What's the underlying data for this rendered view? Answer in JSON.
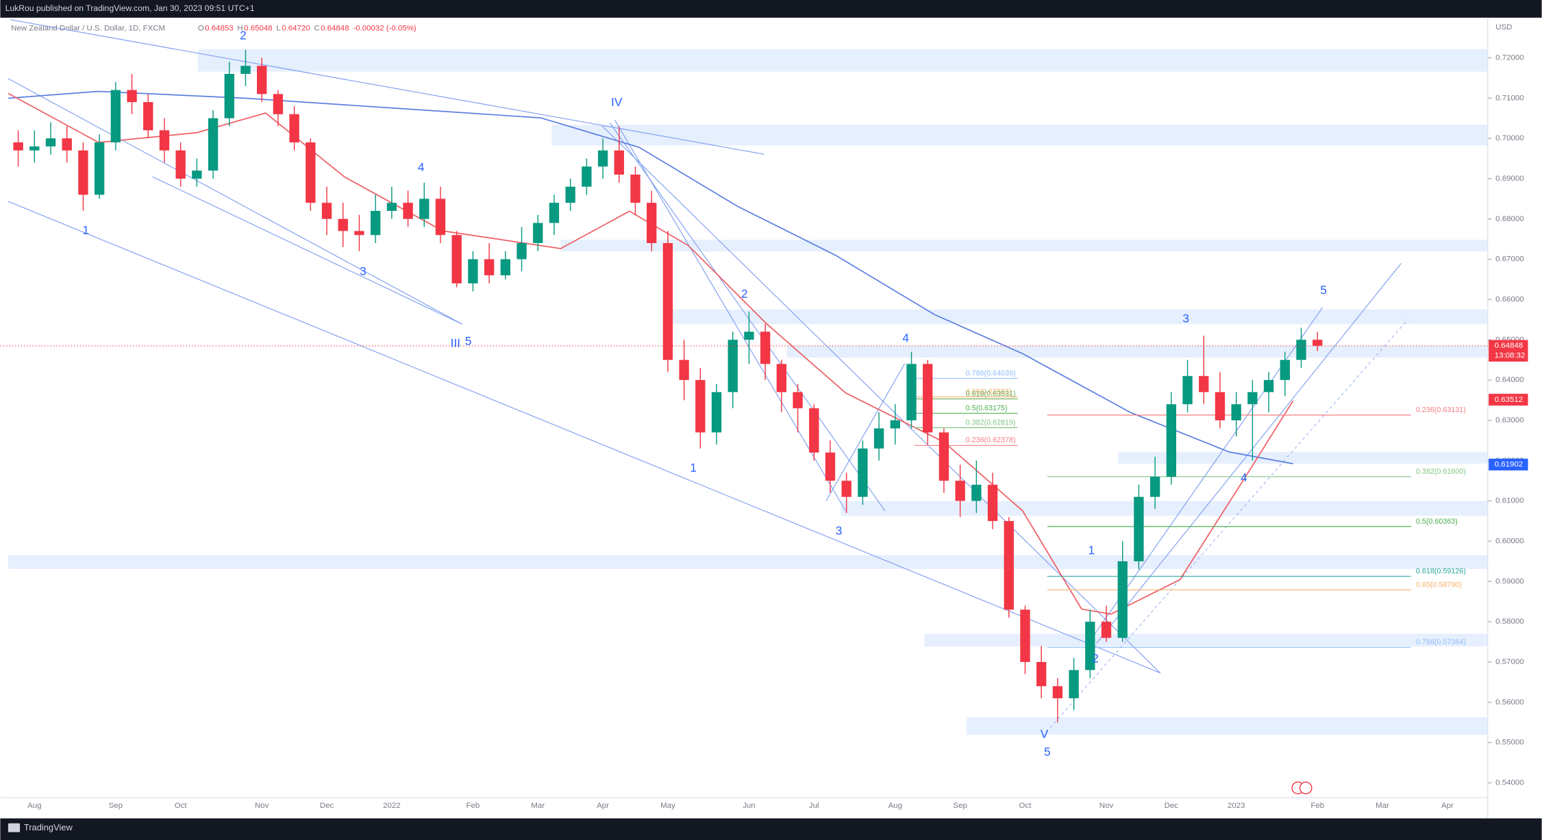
{
  "header": {
    "published": "LukRou published on TradingView.com, Jan 30, 2023 09:51 UTC+1",
    "symbol": "New Zealand Dollar / U.S. Dollar, 1D, FXCM",
    "ohlc": [
      "O",
      "0.64853",
      "H",
      "0.65048",
      "L",
      "0.64720",
      "C",
      "0.64848",
      "-0.00032 (-0.05%)"
    ],
    "currency": "USD"
  },
  "footer": {
    "brand": "TradingView"
  },
  "chart_data": {
    "type": "candlestick",
    "categories": [
      null,
      "Aug",
      null,
      null,
      null,
      null,
      "Sep",
      null,
      null,
      null,
      "Oct",
      null,
      null,
      null,
      null,
      "Nov",
      null,
      null,
      null,
      "Dec",
      null,
      null,
      null,
      "2022",
      null,
      null,
      null,
      null,
      "Feb",
      null,
      null,
      null,
      "Mar",
      null,
      null,
      null,
      "Apr",
      null,
      null,
      null,
      "May",
      null,
      null,
      null,
      null,
      "Jun",
      null,
      null,
      null,
      "Jul",
      null,
      null,
      null,
      null,
      "Aug",
      null,
      null,
      null,
      "Sep",
      null,
      null,
      null,
      "Oct",
      null,
      null,
      null,
      null,
      "Nov",
      null,
      null,
      null,
      "Dec",
      null,
      null,
      null,
      "2023",
      null,
      null,
      null,
      null,
      "Feb",
      null,
      null,
      null,
      "Mar",
      null,
      null,
      null,
      "Apr"
    ],
    "open": [
      0.699,
      0.697,
      0.698,
      0.7,
      0.697,
      0.686,
      0.699,
      0.712,
      0.709,
      0.702,
      0.697,
      0.69,
      0.692,
      0.705,
      0.716,
      0.718,
      0.711,
      0.706,
      0.699,
      0.684,
      0.68,
      0.677,
      0.676,
      0.682,
      0.684,
      0.68,
      0.685,
      0.676,
      0.664,
      0.67,
      0.666,
      0.67,
      0.674,
      0.679,
      0.684,
      0.688,
      0.693,
      0.697,
      0.691,
      0.684,
      0.674,
      0.645,
      0.64,
      0.627,
      0.637,
      0.65,
      0.652,
      0.644,
      0.637,
      0.633,
      0.622,
      0.615,
      0.611,
      0.623,
      0.628,
      0.63,
      0.644,
      0.627,
      0.615,
      0.61,
      0.614,
      0.605,
      0.583,
      0.57,
      0.564,
      0.561,
      0.568,
      0.58,
      0.576,
      0.595,
      0.611,
      0.616,
      0.634,
      0.641,
      0.637,
      0.63,
      0.634,
      0.637,
      0.64,
      0.645,
      0.65,
      null,
      null,
      null,
      null,
      null,
      null,
      null,
      null
    ],
    "high": [
      0.702,
      0.702,
      0.704,
      0.703,
      0.699,
      0.701,
      0.714,
      0.716,
      0.711,
      0.705,
      0.699,
      0.695,
      0.707,
      0.719,
      0.722,
      0.72,
      0.712,
      0.708,
      0.7,
      0.688,
      0.684,
      0.681,
      0.686,
      0.688,
      0.687,
      0.689,
      0.688,
      0.677,
      0.672,
      0.674,
      0.672,
      0.678,
      0.681,
      0.686,
      0.69,
      0.695,
      0.7,
      0.703,
      0.693,
      0.687,
      0.677,
      0.65,
      0.643,
      0.639,
      0.652,
      0.657,
      0.654,
      0.645,
      0.639,
      0.634,
      0.625,
      0.617,
      0.625,
      0.632,
      0.634,
      0.647,
      0.645,
      0.628,
      0.619,
      0.62,
      0.617,
      0.606,
      0.584,
      0.574,
      0.566,
      0.571,
      0.583,
      0.584,
      0.6,
      0.614,
      0.621,
      0.637,
      0.645,
      0.651,
      0.642,
      0.637,
      0.64,
      0.642,
      0.647,
      0.653,
      0.652,
      null,
      null,
      null,
      null,
      null,
      null,
      null,
      null
    ],
    "low": [
      0.693,
      0.694,
      0.696,
      0.694,
      0.682,
      0.685,
      0.697,
      0.706,
      0.7,
      0.694,
      0.688,
      0.688,
      0.69,
      0.703,
      0.713,
      0.709,
      0.703,
      0.697,
      0.682,
      0.676,
      0.673,
      0.672,
      0.674,
      0.68,
      0.678,
      0.678,
      0.674,
      0.663,
      0.662,
      0.664,
      0.665,
      0.667,
      0.672,
      0.676,
      0.682,
      0.686,
      0.69,
      0.689,
      0.681,
      0.672,
      0.642,
      0.635,
      0.623,
      0.624,
      0.633,
      0.644,
      0.64,
      0.632,
      0.627,
      0.62,
      0.612,
      0.607,
      0.609,
      0.62,
      0.624,
      0.628,
      0.624,
      0.612,
      0.606,
      0.607,
      0.603,
      0.581,
      0.567,
      0.561,
      0.555,
      0.558,
      0.566,
      0.575,
      0.575,
      0.593,
      0.608,
      0.614,
      0.632,
      0.634,
      0.628,
      0.626,
      0.62,
      0.632,
      0.636,
      0.643,
      0.6472,
      null,
      null,
      null,
      null,
      null,
      null,
      null,
      null
    ],
    "close": [
      0.697,
      0.698,
      0.7,
      0.697,
      0.686,
      0.699,
      0.712,
      0.709,
      0.702,
      0.697,
      0.69,
      0.692,
      0.705,
      0.716,
      0.718,
      0.711,
      0.706,
      0.699,
      0.684,
      0.68,
      0.677,
      0.676,
      0.682,
      0.684,
      0.68,
      0.685,
      0.676,
      0.664,
      0.67,
      0.666,
      0.67,
      0.674,
      0.679,
      0.684,
      0.688,
      0.693,
      0.697,
      0.691,
      0.684,
      0.674,
      0.645,
      0.64,
      0.627,
      0.637,
      0.65,
      0.652,
      0.644,
      0.637,
      0.633,
      0.622,
      0.615,
      0.611,
      0.623,
      0.628,
      0.63,
      0.644,
      0.627,
      0.615,
      0.61,
      0.614,
      0.605,
      0.583,
      0.57,
      0.564,
      0.561,
      0.568,
      0.58,
      0.576,
      0.595,
      0.611,
      0.616,
      0.634,
      0.641,
      0.637,
      0.63,
      0.634,
      0.637,
      0.64,
      0.645,
      0.65,
      0.6485,
      null,
      null,
      null,
      null,
      null,
      null,
      null,
      null
    ],
    "up_color": "#089981",
    "down_color": "#f23645",
    "ylim": [
      0.5363,
      0.7302
    ],
    "yticks": [
      {
        "value": 0.54,
        "label": "0.54000"
      },
      {
        "value": 0.55,
        "label": "0.55000"
      },
      {
        "value": 0.56,
        "label": "0.56000"
      },
      {
        "value": 0.57,
        "label": "0.57000"
      },
      {
        "value": 0.58,
        "label": "0.58000"
      },
      {
        "value": 0.59,
        "label": "0.59000"
      },
      {
        "value": 0.6,
        "label": "0.60000"
      },
      {
        "value": 0.61,
        "label": "0.61000"
      },
      {
        "value": 0.62,
        "label": "0.62000"
      },
      {
        "value": 0.63,
        "label": "0.63000"
      },
      {
        "value": 0.64,
        "label": "0.64000"
      },
      {
        "value": 0.65,
        "label": "0.65000"
      },
      {
        "value": 0.66,
        "label": "0.66000"
      },
      {
        "value": 0.67,
        "label": "0.67000"
      },
      {
        "value": 0.68,
        "label": "0.68000"
      },
      {
        "value": 0.69,
        "label": "0.69000"
      },
      {
        "value": 0.7,
        "label": "0.70000"
      },
      {
        "value": 0.71,
        "label": "0.71000"
      },
      {
        "value": 0.72,
        "label": "0.72000"
      }
    ],
    "price_tags": [
      {
        "value": 0.64848,
        "color": "#f23645",
        "sub": "13:08:32"
      },
      {
        "value": 0.63512,
        "color": "#f23645"
      },
      {
        "value": 0.61902,
        "color": "#2962ff"
      }
    ],
    "fib_left": [
      {
        "value": 0.64039,
        "label": "0.786(0.64039)",
        "color": "#90bff9"
      },
      {
        "value": 0.63583,
        "label": "0.65(0.63583)",
        "color": "#f6b26b"
      },
      {
        "value": 0.63531,
        "label": "0.618(0.63531)",
        "color": "#6aa84f"
      },
      {
        "value": 0.63175,
        "label": "0.5(0.63175)",
        "color": "#4caf50"
      },
      {
        "value": 0.62819,
        "label": "0.382(0.62819)",
        "color": "#81c784"
      },
      {
        "value": 0.62378,
        "label": "0.236(0.62378)",
        "color": "#f77c80"
      }
    ],
    "fib_right": [
      {
        "value": 0.63131,
        "label": "0.236(0.63131)",
        "color": "#f77c80"
      },
      {
        "value": 0.616,
        "label": "0.382(0.61600)",
        "color": "#81c784"
      },
      {
        "value": 0.60363,
        "label": "0.5(0.60363)",
        "color": "#4caf50"
      },
      {
        "value": 0.59126,
        "label": "0.618(0.59126)",
        "color": "#26a69a"
      },
      {
        "value": 0.5879,
        "label": "0.65(0.58790)",
        "color": "#f6b26b"
      },
      {
        "value": 0.57364,
        "label": "0.786(0.57364)",
        "color": "#90bff9"
      }
    ],
    "waves": [
      "2",
      "IV",
      "4",
      "1",
      "3",
      "III",
      "5",
      "2",
      "1",
      "4",
      "3",
      "V",
      "5",
      "1",
      "2",
      "3",
      "4",
      "5"
    ]
  }
}
